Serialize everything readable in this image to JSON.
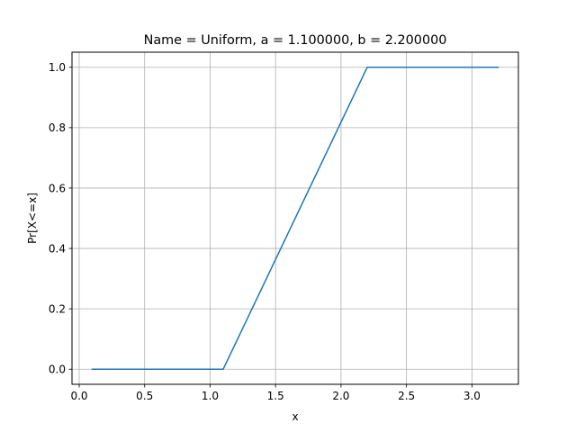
{
  "chart_data": {
    "type": "line",
    "title": "Name = Uniform, a = 1.100000, b = 2.200000",
    "xlabel": "x",
    "ylabel": "Pr[X<=x]",
    "xlim": [
      -0.055,
      3.355
    ],
    "ylim": [
      -0.05,
      1.05
    ],
    "xticks": [
      0.0,
      0.5,
      1.0,
      1.5,
      2.0,
      2.5,
      3.0
    ],
    "xtick_labels": [
      "0.0",
      "0.5",
      "1.0",
      "1.5",
      "2.0",
      "2.5",
      "3.0"
    ],
    "yticks": [
      0.0,
      0.2,
      0.4,
      0.6,
      0.8,
      1.0
    ],
    "ytick_labels": [
      "0.0",
      "0.2",
      "0.4",
      "0.6",
      "0.8",
      "1.0"
    ],
    "grid": true,
    "series": [
      {
        "color": "#1f77b4",
        "x": [
          0.1,
          1.1,
          2.2,
          3.2
        ],
        "y": [
          0.0,
          0.0,
          1.0,
          1.0
        ]
      }
    ]
  }
}
